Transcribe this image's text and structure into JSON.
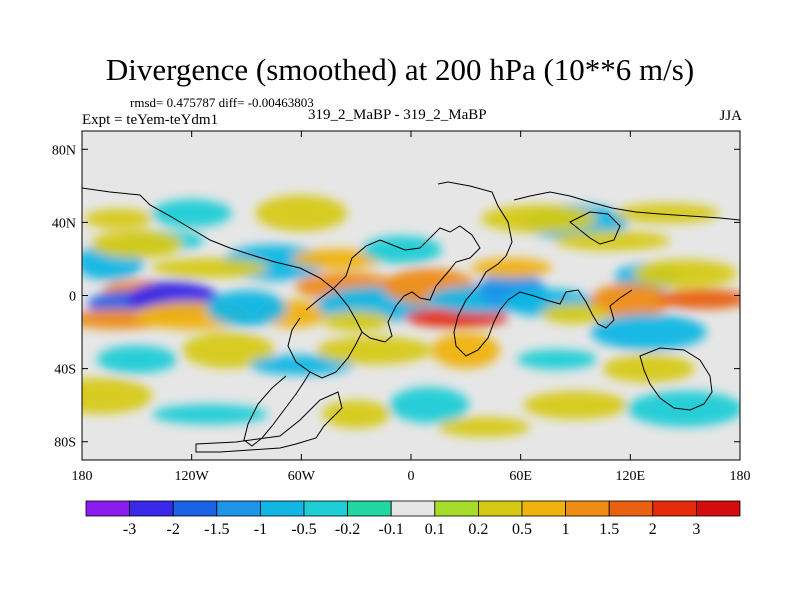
{
  "header": {
    "title": "Divergence (smoothed) at 200 hPa (10**6 m/s)",
    "stats": "rmsd= 0.475787 diff= -0.00463803",
    "expt": "Expt = teYem-teYdm1",
    "center_label": "319_2_MaBP - 319_2_MaBP",
    "season": "JJA"
  },
  "chart_data": {
    "type": "heatmap",
    "title": "Divergence (smoothed) at 200 hPa (10**6 m/s)",
    "xlim": [
      -180,
      180
    ],
    "ylim": [
      -90,
      90
    ],
    "x_ticks": [
      {
        "value": -180,
        "label": "180"
      },
      {
        "value": -120,
        "label": "120W"
      },
      {
        "value": -60,
        "label": "60W"
      },
      {
        "value": 0,
        "label": "0"
      },
      {
        "value": 60,
        "label": "60E"
      },
      {
        "value": 120,
        "label": "120E"
      },
      {
        "value": 180,
        "label": "180"
      }
    ],
    "y_ticks": [
      {
        "value": 80,
        "label": "80N"
      },
      {
        "value": 40,
        "label": "40N"
      },
      {
        "value": 0,
        "label": "0"
      },
      {
        "value": -40,
        "label": "40S"
      },
      {
        "value": -80,
        "label": "80S"
      }
    ],
    "colorbar": {
      "labels": [
        "-3",
        "-2",
        "-1.5",
        "-1",
        "-0.5",
        "-0.2",
        "-0.1",
        "0.1",
        "0.2",
        "0.5",
        "1",
        "1.5",
        "2",
        "3"
      ],
      "colors": [
        "#8a1cf0",
        "#3a28e8",
        "#1a62e6",
        "#1e94e8",
        "#10b6e4",
        "#1ecdd6",
        "#22d6a2",
        "#e6e6e6",
        "#a6dc2a",
        "#d6ca14",
        "#f0b20e",
        "#ee8c16",
        "#e86010",
        "#e42c0c",
        "#d40c0c"
      ]
    },
    "field_regions": [
      {
        "lon": -150,
        "lat": 3,
        "value": 1.2
      },
      {
        "lon": -155,
        "lat": -5,
        "value": -1.7
      },
      {
        "lon": -130,
        "lat": -2,
        "value": -2.2
      },
      {
        "lon": -160,
        "lat": -13,
        "value": 1.1
      },
      {
        "lon": -120,
        "lat": -11,
        "value": 0.9
      },
      {
        "lon": -165,
        "lat": 18,
        "value": -0.6
      },
      {
        "lon": -135,
        "lat": 30,
        "value": -0.3
      },
      {
        "lon": -150,
        "lat": 28,
        "value": 0.3
      },
      {
        "lon": -75,
        "lat": 18,
        "value": -0.9
      },
      {
        "lon": -110,
        "lat": 15,
        "value": 0.4
      },
      {
        "lon": -65,
        "lat": -10,
        "value": 0.6
      },
      {
        "lon": -90,
        "lat": -7,
        "value": -0.5
      },
      {
        "lon": -40,
        "lat": 20,
        "value": 0.7
      },
      {
        "lon": -35,
        "lat": 5,
        "value": 1.4
      },
      {
        "lon": -20,
        "lat": -5,
        "value": -0.8
      },
      {
        "lon": -30,
        "lat": -14,
        "value": 0.5
      },
      {
        "lon": -5,
        "lat": 25,
        "value": -0.4
      },
      {
        "lon": 10,
        "lat": 5,
        "value": 1.1
      },
      {
        "lon": 25,
        "lat": -12,
        "value": 2.6
      },
      {
        "lon": 40,
        "lat": -2,
        "value": -0.6
      },
      {
        "lon": 55,
        "lat": 3,
        "value": -1.1
      },
      {
        "lon": 55,
        "lat": 15,
        "value": 0.9
      },
      {
        "lon": 75,
        "lat": -4,
        "value": -0.8
      },
      {
        "lon": 90,
        "lat": 40,
        "value": -0.6
      },
      {
        "lon": 110,
        "lat": 30,
        "value": 0.5
      },
      {
        "lon": 130,
        "lat": 10,
        "value": -0.9
      },
      {
        "lon": 120,
        "lat": -3,
        "value": 1.3
      },
      {
        "lon": 160,
        "lat": -2,
        "value": 1.7
      },
      {
        "lon": 150,
        "lat": 12,
        "value": 0.4
      },
      {
        "lon": 130,
        "lat": -20,
        "value": -0.5
      },
      {
        "lon": 90,
        "lat": -10,
        "value": 0.5
      },
      {
        "lon": -150,
        "lat": -35,
        "value": -0.4
      },
      {
        "lon": -100,
        "lat": -30,
        "value": 0.4
      },
      {
        "lon": -60,
        "lat": -38,
        "value": -0.5
      },
      {
        "lon": -20,
        "lat": -30,
        "value": 0.3
      },
      {
        "lon": 30,
        "lat": -30,
        "value": 0.6
      },
      {
        "lon": 80,
        "lat": -35,
        "value": -0.3
      },
      {
        "lon": 130,
        "lat": -40,
        "value": 0.3
      },
      {
        "lon": -170,
        "lat": -55,
        "value": 0.5
      },
      {
        "lon": -110,
        "lat": -65,
        "value": -0.3
      },
      {
        "lon": -30,
        "lat": -65,
        "value": 0.4
      },
      {
        "lon": 10,
        "lat": -60,
        "value": -0.4
      },
      {
        "lon": 40,
        "lat": -72,
        "value": 0.3
      },
      {
        "lon": 90,
        "lat": -60,
        "value": 0.5
      },
      {
        "lon": 150,
        "lat": -62,
        "value": -0.3
      },
      {
        "lon": -160,
        "lat": 42,
        "value": 0.4
      },
      {
        "lon": -120,
        "lat": 45,
        "value": -0.3
      },
      {
        "lon": -60,
        "lat": 45,
        "value": 0.3
      },
      {
        "lon": 140,
        "lat": 45,
        "value": 0.4
      },
      {
        "lon": 70,
        "lat": 42,
        "value": 0.3
      }
    ]
  }
}
